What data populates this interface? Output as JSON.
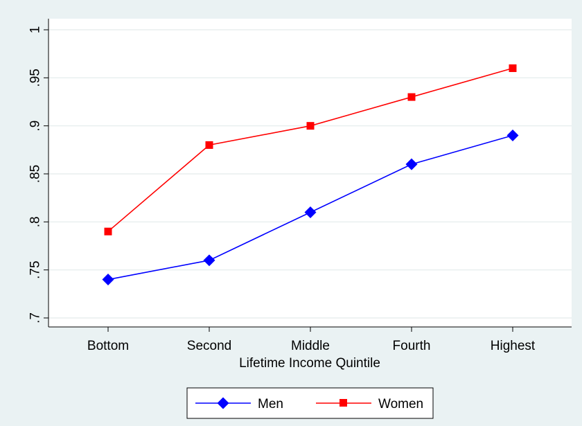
{
  "chart_data": {
    "type": "line",
    "title": "",
    "xlabel": "Lifetime Income Quintile",
    "ylabel": "",
    "categories": [
      "Bottom",
      "Second",
      "Middle",
      "Fourth",
      "Highest"
    ],
    "ylim": [
      0.7,
      1.0
    ],
    "yticks": [
      0.7,
      0.75,
      0.8,
      0.85,
      0.9,
      0.95,
      1.0
    ],
    "ytick_labels": [
      ".7",
      ".75",
      ".8",
      ".85",
      ".9",
      ".95",
      "1"
    ],
    "grid": true,
    "legend_position": "bottom",
    "series": [
      {
        "name": "Men",
        "values": [
          0.74,
          0.76,
          0.81,
          0.86,
          0.89
        ],
        "color": "#0000ff",
        "marker": "diamond"
      },
      {
        "name": "Women",
        "values": [
          0.79,
          0.88,
          0.9,
          0.93,
          0.96
        ],
        "color": "#ff0000",
        "marker": "square"
      }
    ]
  }
}
